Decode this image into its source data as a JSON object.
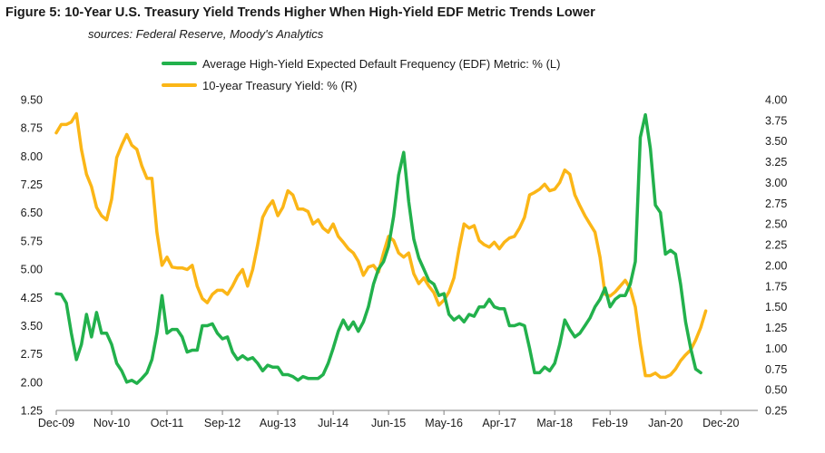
{
  "chart_data": {
    "type": "line",
    "title": "Figure 5: 10-Year U.S. Treasury Yield Trends Higher When High-Yield EDF Metric Trends Lower",
    "subtitle": "sources: Federal Reserve, Moody's Analytics",
    "x_tick_labels": [
      "Dec-09",
      "Nov-10",
      "Oct-11",
      "Sep-12",
      "Aug-13",
      "Jul-14",
      "Jun-15",
      "May-16",
      "Apr-17",
      "Mar-18",
      "Feb-19",
      "Jan-20",
      "Dec-20"
    ],
    "x_range": [
      0,
      137
    ],
    "y_left": {
      "range": [
        1.25,
        9.5
      ],
      "ticks": [
        "1.25",
        "2.00",
        "2.75",
        "3.50",
        "4.25",
        "5.00",
        "5.75",
        "6.50",
        "7.25",
        "8.00",
        "8.75",
        "9.50"
      ]
    },
    "y_right": {
      "range": [
        0.25,
        4.0
      ],
      "ticks": [
        "0.25",
        "0.50",
        "0.75",
        "1.00",
        "1.25",
        "1.50",
        "1.75",
        "2.00",
        "2.25",
        "2.50",
        "2.75",
        "3.00",
        "3.25",
        "3.50",
        "3.75",
        "4.00"
      ]
    },
    "series": [
      {
        "name": "Average High-Yield Expected Default Frequency (EDF) Metric: % (L)",
        "axis": "left",
        "color": "#22b14c",
        "points": [
          [
            0,
            4.35
          ],
          [
            1,
            4.33
          ],
          [
            2,
            4.1
          ],
          [
            3,
            3.3
          ],
          [
            4,
            2.6
          ],
          [
            5,
            3.0
          ],
          [
            6,
            3.8
          ],
          [
            7,
            3.2
          ],
          [
            8,
            3.85
          ],
          [
            9,
            3.3
          ],
          [
            10,
            3.3
          ],
          [
            11,
            3.0
          ],
          [
            12,
            2.5
          ],
          [
            13,
            2.3
          ],
          [
            14,
            2.0
          ],
          [
            15,
            2.05
          ],
          [
            16,
            1.97
          ],
          [
            17,
            2.1
          ],
          [
            18,
            2.25
          ],
          [
            19,
            2.6
          ],
          [
            20,
            3.3
          ],
          [
            21,
            4.3
          ],
          [
            22,
            3.3
          ],
          [
            23,
            3.4
          ],
          [
            24,
            3.4
          ],
          [
            25,
            3.2
          ],
          [
            26,
            2.8
          ],
          [
            27,
            2.85
          ],
          [
            28,
            2.85
          ],
          [
            29,
            3.5
          ],
          [
            30,
            3.5
          ],
          [
            31,
            3.55
          ],
          [
            32,
            3.3
          ],
          [
            33,
            3.15
          ],
          [
            34,
            3.2
          ],
          [
            35,
            2.8
          ],
          [
            36,
            2.6
          ],
          [
            37,
            2.7
          ],
          [
            38,
            2.6
          ],
          [
            39,
            2.65
          ],
          [
            40,
            2.5
          ],
          [
            41,
            2.3
          ],
          [
            42,
            2.45
          ],
          [
            43,
            2.4
          ],
          [
            44,
            2.4
          ],
          [
            45,
            2.2
          ],
          [
            46,
            2.2
          ],
          [
            47,
            2.15
          ],
          [
            48,
            2.05
          ],
          [
            49,
            2.15
          ],
          [
            50,
            2.1
          ],
          [
            51,
            2.1
          ],
          [
            52,
            2.1
          ],
          [
            53,
            2.2
          ],
          [
            54,
            2.5
          ],
          [
            55,
            2.9
          ],
          [
            56,
            3.35
          ],
          [
            57,
            3.65
          ],
          [
            58,
            3.4
          ],
          [
            59,
            3.6
          ],
          [
            60,
            3.35
          ],
          [
            61,
            3.6
          ],
          [
            62,
            4.0
          ],
          [
            63,
            4.6
          ],
          [
            64,
            5.0
          ],
          [
            65,
            5.2
          ],
          [
            66,
            5.6
          ],
          [
            67,
            6.4
          ],
          [
            68,
            7.5
          ],
          [
            69,
            8.1
          ],
          [
            70,
            6.8
          ],
          [
            71,
            5.8
          ],
          [
            72,
            5.3
          ],
          [
            73,
            5.0
          ],
          [
            74,
            4.7
          ],
          [
            75,
            4.6
          ],
          [
            76,
            4.3
          ],
          [
            77,
            4.35
          ],
          [
            78,
            3.8
          ],
          [
            79,
            3.65
          ],
          [
            80,
            3.75
          ],
          [
            81,
            3.6
          ],
          [
            82,
            3.8
          ],
          [
            83,
            3.75
          ],
          [
            84,
            4.0
          ],
          [
            85,
            4.0
          ],
          [
            86,
            4.2
          ],
          [
            87,
            4.0
          ],
          [
            88,
            3.95
          ],
          [
            89,
            3.95
          ],
          [
            90,
            3.5
          ],
          [
            91,
            3.5
          ],
          [
            92,
            3.55
          ],
          [
            93,
            3.5
          ],
          [
            94,
            2.9
          ],
          [
            95,
            2.25
          ],
          [
            96,
            2.25
          ],
          [
            97,
            2.4
          ],
          [
            98,
            2.3
          ],
          [
            99,
            2.5
          ],
          [
            100,
            3.0
          ],
          [
            101,
            3.65
          ],
          [
            102,
            3.4
          ],
          [
            103,
            3.2
          ],
          [
            104,
            3.3
          ],
          [
            105,
            3.5
          ],
          [
            106,
            3.7
          ],
          [
            107,
            4.0
          ],
          [
            108,
            4.2
          ],
          [
            109,
            4.5
          ],
          [
            110,
            4.0
          ],
          [
            111,
            4.2
          ],
          [
            112,
            4.3
          ],
          [
            113,
            4.3
          ],
          [
            114,
            4.6
          ],
          [
            115,
            5.2
          ],
          [
            116,
            8.5
          ],
          [
            117,
            9.1
          ],
          [
            118,
            8.2
          ],
          [
            119,
            6.7
          ],
          [
            120,
            6.5
          ],
          [
            121,
            5.4
          ],
          [
            122,
            5.5
          ],
          [
            123,
            5.4
          ],
          [
            124,
            4.6
          ],
          [
            125,
            3.6
          ],
          [
            126,
            2.9
          ],
          [
            127,
            2.35
          ],
          [
            128,
            2.25
          ]
        ]
      },
      {
        "name": "10-year Treasury Yield: % (R)",
        "axis": "right",
        "color": "#fbb617",
        "points": [
          [
            0,
            3.6
          ],
          [
            1,
            3.7
          ],
          [
            2,
            3.7
          ],
          [
            3,
            3.73
          ],
          [
            4,
            3.83
          ],
          [
            5,
            3.4
          ],
          [
            6,
            3.1
          ],
          [
            7,
            2.95
          ],
          [
            8,
            2.7
          ],
          [
            9,
            2.6
          ],
          [
            10,
            2.55
          ],
          [
            11,
            2.8
          ],
          [
            12,
            3.3
          ],
          [
            13,
            3.45
          ],
          [
            14,
            3.58
          ],
          [
            15,
            3.45
          ],
          [
            16,
            3.4
          ],
          [
            17,
            3.2
          ],
          [
            18,
            3.05
          ],
          [
            19,
            3.05
          ],
          [
            20,
            2.4
          ],
          [
            21,
            2.0
          ],
          [
            22,
            2.1
          ],
          [
            23,
            1.98
          ],
          [
            24,
            1.97
          ],
          [
            25,
            1.97
          ],
          [
            26,
            1.95
          ],
          [
            27,
            2.0
          ],
          [
            28,
            1.75
          ],
          [
            29,
            1.6
          ],
          [
            30,
            1.55
          ],
          [
            31,
            1.65
          ],
          [
            32,
            1.7
          ],
          [
            33,
            1.7
          ],
          [
            34,
            1.65
          ],
          [
            35,
            1.75
          ],
          [
            36,
            1.87
          ],
          [
            37,
            1.95
          ],
          [
            38,
            1.75
          ],
          [
            39,
            1.95
          ],
          [
            40,
            2.25
          ],
          [
            41,
            2.58
          ],
          [
            42,
            2.7
          ],
          [
            43,
            2.78
          ],
          [
            44,
            2.6
          ],
          [
            45,
            2.7
          ],
          [
            46,
            2.9
          ],
          [
            47,
            2.85
          ],
          [
            48,
            2.68
          ],
          [
            49,
            2.68
          ],
          [
            50,
            2.65
          ],
          [
            51,
            2.5
          ],
          [
            52,
            2.55
          ],
          [
            53,
            2.45
          ],
          [
            54,
            2.4
          ],
          [
            55,
            2.5
          ],
          [
            56,
            2.35
          ],
          [
            57,
            2.28
          ],
          [
            58,
            2.2
          ],
          [
            59,
            2.15
          ],
          [
            60,
            2.05
          ],
          [
            61,
            1.88
          ],
          [
            62,
            1.98
          ],
          [
            63,
            2.0
          ],
          [
            64,
            1.92
          ],
          [
            65,
            2.15
          ],
          [
            66,
            2.35
          ],
          [
            67,
            2.3
          ],
          [
            68,
            2.15
          ],
          [
            69,
            2.1
          ],
          [
            70,
            2.15
          ],
          [
            71,
            1.9
          ],
          [
            72,
            1.78
          ],
          [
            73,
            1.85
          ],
          [
            74,
            1.75
          ],
          [
            75,
            1.67
          ],
          [
            76,
            1.52
          ],
          [
            77,
            1.58
          ],
          [
            78,
            1.68
          ],
          [
            79,
            1.85
          ],
          [
            80,
            2.2
          ],
          [
            81,
            2.5
          ],
          [
            82,
            2.45
          ],
          [
            83,
            2.48
          ],
          [
            84,
            2.3
          ],
          [
            85,
            2.25
          ],
          [
            86,
            2.22
          ],
          [
            87,
            2.28
          ],
          [
            88,
            2.2
          ],
          [
            89,
            2.28
          ],
          [
            90,
            2.33
          ],
          [
            91,
            2.35
          ],
          [
            92,
            2.45
          ],
          [
            93,
            2.58
          ],
          [
            94,
            2.85
          ],
          [
            95,
            2.88
          ],
          [
            96,
            2.92
          ],
          [
            97,
            2.98
          ],
          [
            98,
            2.9
          ],
          [
            99,
            2.92
          ],
          [
            100,
            3.0
          ],
          [
            101,
            3.15
          ],
          [
            102,
            3.1
          ],
          [
            103,
            2.85
          ],
          [
            104,
            2.72
          ],
          [
            105,
            2.6
          ],
          [
            106,
            2.5
          ],
          [
            107,
            2.4
          ],
          [
            108,
            2.1
          ],
          [
            109,
            1.65
          ],
          [
            110,
            1.63
          ],
          [
            111,
            1.68
          ],
          [
            112,
            1.75
          ],
          [
            113,
            1.82
          ],
          [
            114,
            1.72
          ],
          [
            115,
            1.5
          ],
          [
            116,
            1.05
          ],
          [
            117,
            0.67
          ],
          [
            118,
            0.67
          ],
          [
            119,
            0.7
          ],
          [
            120,
            0.65
          ],
          [
            121,
            0.65
          ],
          [
            122,
            0.68
          ],
          [
            123,
            0.75
          ],
          [
            124,
            0.85
          ],
          [
            125,
            0.92
          ],
          [
            126,
            0.98
          ],
          [
            127,
            1.1
          ],
          [
            128,
            1.25
          ],
          [
            129,
            1.45
          ]
        ]
      }
    ],
    "legend_position": "top-center",
    "grid": false
  }
}
